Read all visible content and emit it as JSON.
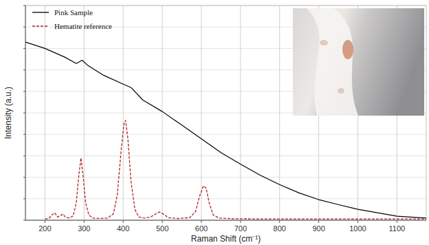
{
  "chart_data": {
    "type": "line",
    "x_label": "Raman Shift (cm⁻¹)",
    "y_label": "Intensity (a.u.)",
    "xlim": [
      150,
      1175
    ],
    "ylim": [
      0,
      100
    ],
    "xticks": [
      200,
      300,
      400,
      500,
      600,
      700,
      800,
      900,
      1000,
      1100
    ],
    "yticks": [
      0,
      10,
      20,
      30,
      40,
      50,
      60,
      70,
      80,
      90,
      100
    ],
    "tick_labels": "x",
    "grid": true,
    "legend": "top-left",
    "series": [
      {
        "name": "Pink Sample",
        "color": "#000000",
        "line_style": "solid",
        "marker": "none",
        "x": [
          150,
          200,
          250,
          280,
          295,
          310,
          350,
          400,
          420,
          450,
          500,
          550,
          600,
          650,
          700,
          750,
          800,
          850,
          900,
          950,
          1000,
          1050,
          1100,
          1175
        ],
        "values": [
          83,
          80,
          76,
          73,
          74.5,
          72,
          67.5,
          63.4,
          61.8,
          56,
          50.6,
          44.3,
          37.9,
          31.5,
          26.1,
          21,
          16.6,
          12.7,
          9.6,
          7.3,
          5.1,
          3.5,
          1.9,
          1
        ]
      },
      {
        "name": "Hematite reference",
        "color": "#b22222",
        "line_style": "dashed",
        "marker": "none",
        "x": [
          200,
          210,
          218,
          225,
          232,
          240,
          246,
          252,
          262,
          272,
          280,
          286,
          292,
          298,
          304,
          312,
          322,
          340,
          360,
          375,
          385,
          395,
          402,
          406,
          412,
          420,
          430,
          440,
          455,
          470,
          482,
          492,
          502,
          515,
          540,
          570,
          585,
          595,
          605,
          612,
          620,
          630,
          645,
          680,
          750,
          850,
          950,
          1050,
          1175
        ],
        "values": [
          0.6,
          0.8,
          2.5,
          3.5,
          1.5,
          2.2,
          2.9,
          1.5,
          1,
          2,
          8,
          20,
          29,
          20,
          8,
          2.5,
          1,
          0.8,
          1,
          3,
          12,
          33,
          45,
          46.5,
          38,
          18,
          5,
          1.5,
          1,
          1.5,
          2.8,
          3.8,
          3,
          1.2,
          0.8,
          1.2,
          4,
          11,
          16,
          15,
          8,
          2.5,
          1,
          0.7,
          0.6,
          0.6,
          0.6,
          0.6,
          0.6
        ]
      }
    ]
  }
}
